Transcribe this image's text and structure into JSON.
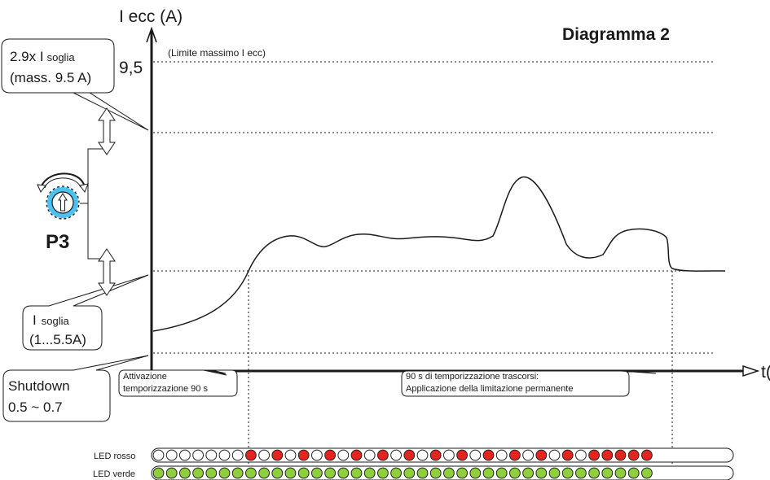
{
  "title": "Diagramma 2",
  "y_axis": {
    "label": "I ecc (A)",
    "max_tick": "9,5",
    "max_note": "(Limite massimo I ecc)"
  },
  "x_axis": {
    "label": "t(s)"
  },
  "callouts": {
    "upper_line1_main": "2.9x I",
    "upper_line1_sub": "soglia",
    "upper_line2": "(mass. 9.5 A)",
    "threshold_main": "I",
    "threshold_sub": "soglia",
    "threshold_line2": "(1...5.5A)",
    "shutdown_line1": "Shutdown",
    "shutdown_line2": "0.5 ~ 0.7",
    "activation_line1": "Attivazione",
    "activation_line2": "temporizzazione 90 s",
    "elapsed_line1": "90 s di temporizzazione trascorsi:",
    "elapsed_line2": "Applicazione della limitazione permanente"
  },
  "knob": {
    "label": "P3",
    "icon": "potentiometer-knob-icon"
  },
  "leds": {
    "red_label": "LED rosso",
    "green_label": "LED verde",
    "red_pattern": "OOOOOOORORORORORORORORORORORORORORRRRR",
    "green_pattern": "GGGGGGGGGGGGGGGGGGGGGGGGGGGGGGGGGGGGGG",
    "colors": {
      "red_on": "#e52420",
      "off": "#ffffff",
      "green": "#8fce3c",
      "ring": "#222222"
    }
  },
  "colors": {
    "ink": "#1a1a1a",
    "knob_blue": "#4cc2f2"
  }
}
